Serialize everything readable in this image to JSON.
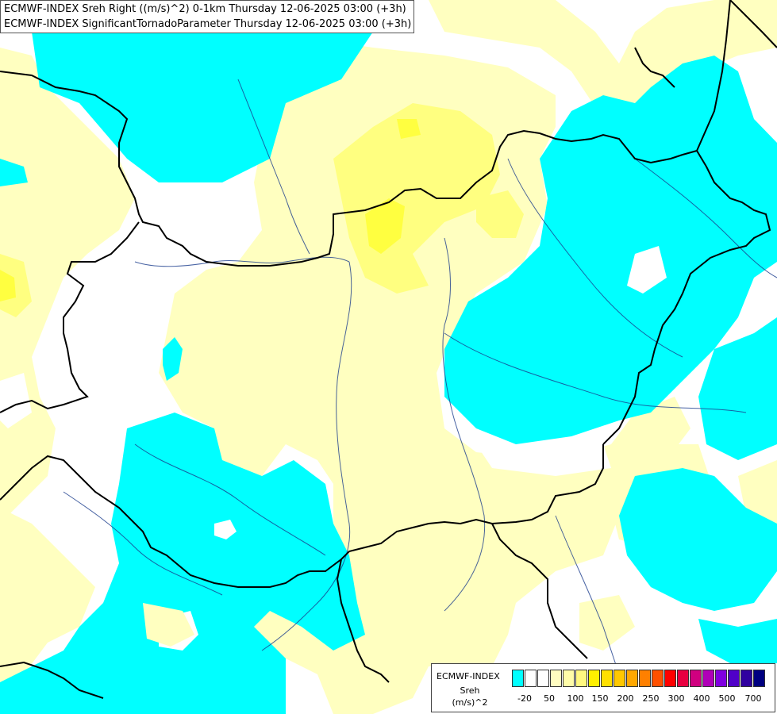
{
  "titles": {
    "line1": "ECMWF-INDEX Sreh Right ((m/s)^2) 0-1km Thursday 12-06-2025 03:00 (+3h)",
    "line2": "ECMWF-INDEX SignificantTornadoParameter Thursday 12-06-2025 03:00 (+3h)"
  },
  "legend": {
    "name": "ECMWF-INDEX",
    "variable": "Sreh",
    "unit": "(m/s)^2",
    "colors": [
      "#00ffff",
      "#ffffff",
      "#ffffff",
      "#fffcc0",
      "#fffca8",
      "#fff880",
      "#fff000",
      "#ffe000",
      "#ffc800",
      "#ffa800",
      "#ff8000",
      "#ff5000",
      "#ff0000",
      "#e80040",
      "#d00080",
      "#b000b8",
      "#8000e0",
      "#5000c8",
      "#3000a0",
      "#000080"
    ],
    "ticks": [
      "-20",
      "50",
      "100",
      "150",
      "200",
      "250",
      "300",
      "400",
      "500",
      "700"
    ]
  },
  "map_layers": {
    "positive_shear_color": "#ffffc0",
    "strong_shear_color": "#ffff80",
    "negative_shear_color": "#00ffff",
    "border_color": "#000000",
    "river_color": "#1a3c8c"
  }
}
